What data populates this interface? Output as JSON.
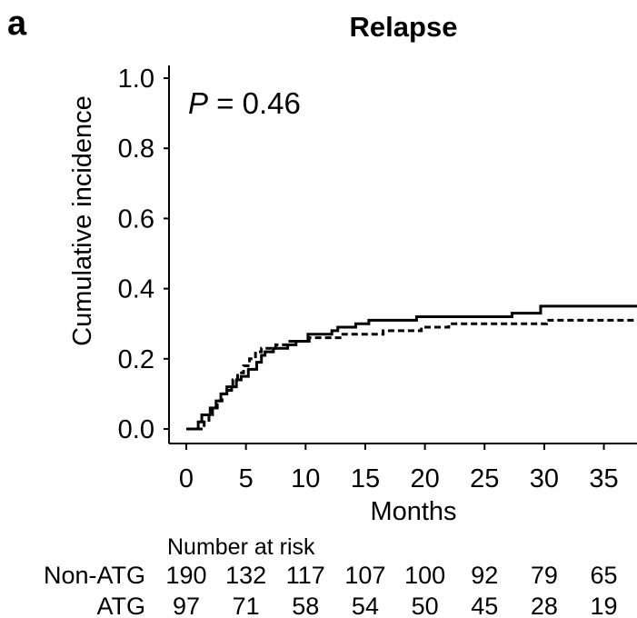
{
  "panel_label": "a",
  "title": "Relapse",
  "p_value": {
    "symbol": "P",
    "text": " = 0.46"
  },
  "chart_data": {
    "type": "line",
    "title": "Relapse",
    "xlabel": "Months",
    "ylabel": "Cumulative incidence",
    "xlim": [
      -1.5,
      38
    ],
    "ylim": [
      -0.04,
      1.04
    ],
    "x_ticks": [
      0,
      5,
      10,
      15,
      20,
      25,
      30,
      35
    ],
    "x_tick_labels": [
      "0",
      "5",
      "10",
      "15",
      "20",
      "25",
      "30",
      "35"
    ],
    "y_ticks": [
      0.0,
      0.2,
      0.4,
      0.6,
      0.8,
      1.0
    ],
    "y_tick_labels": [
      "0.0",
      "0.2",
      "0.4",
      "0.6",
      "0.8",
      "1.0"
    ],
    "grid": false,
    "legend": "none",
    "series": [
      {
        "style": "solid",
        "step_x": [
          0,
          1.0,
          1.3,
          2.0,
          2.5,
          2.9,
          3.4,
          3.8,
          4.2,
          4.6,
          5.2,
          5.9,
          6.3,
          6.6,
          7.3,
          8.5,
          9.2,
          10.2,
          12.2,
          12.7,
          14.2,
          15.3,
          19.3,
          27.3,
          29.7,
          40
        ],
        "step_y": [
          0,
          0.02,
          0.04,
          0.06,
          0.08,
          0.1,
          0.11,
          0.12,
          0.14,
          0.15,
          0.17,
          0.19,
          0.21,
          0.22,
          0.23,
          0.24,
          0.25,
          0.27,
          0.28,
          0.29,
          0.3,
          0.31,
          0.32,
          0.33,
          0.35,
          0.35
        ]
      },
      {
        "style": "dashed",
        "step_x": [
          0,
          1.5,
          1.9,
          2.2,
          2.6,
          3.0,
          3.4,
          3.9,
          4.3,
          4.8,
          5.3,
          5.8,
          6.3,
          7.5,
          8.5,
          9.5,
          10.3,
          13.0,
          16.5,
          19.7,
          22.0,
          29.0,
          30.2,
          40
        ],
        "step_y": [
          0,
          0.02,
          0.04,
          0.06,
          0.08,
          0.1,
          0.12,
          0.14,
          0.16,
          0.18,
          0.2,
          0.22,
          0.23,
          0.24,
          0.25,
          0.25,
          0.26,
          0.27,
          0.28,
          0.29,
          0.3,
          0.3,
          0.31,
          0.31
        ]
      }
    ]
  },
  "risk_table": {
    "title": "Number at risk",
    "times": [
      0,
      5,
      10,
      15,
      20,
      25,
      30,
      35
    ],
    "rows": [
      {
        "label": "Non-ATG",
        "values": [
          "190",
          "132",
          "117",
          "107",
          "100",
          "92",
          "79",
          "65"
        ]
      },
      {
        "label": "ATG",
        "values": [
          "97",
          "71",
          "58",
          "54",
          "50",
          "45",
          "28",
          "19"
        ]
      }
    ]
  }
}
